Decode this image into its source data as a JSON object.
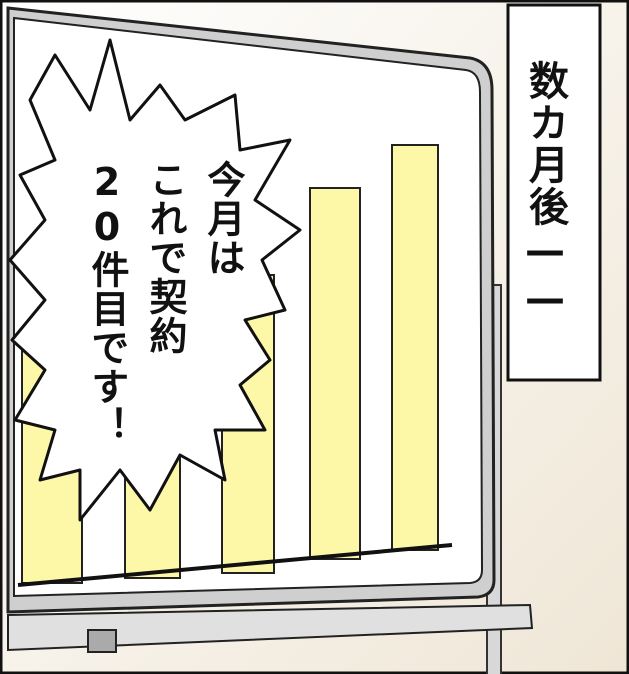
{
  "caption": "数カ月後——",
  "speech_bubble": {
    "lines": [
      "今月は",
      "これで契約",
      "20件目です！"
    ]
  }
}
